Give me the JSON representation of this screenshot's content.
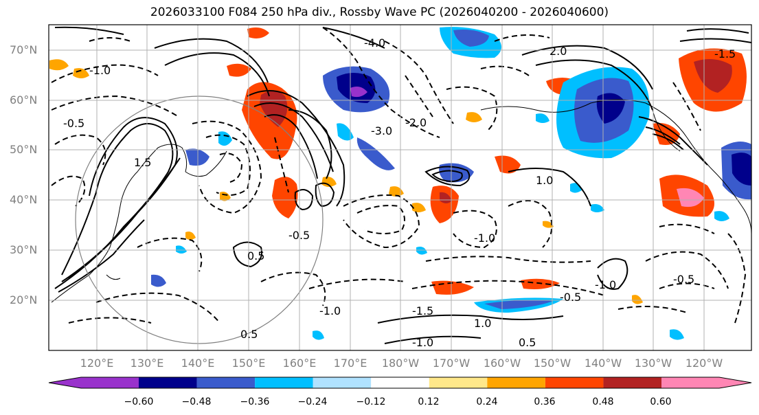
{
  "title": "2026033100 F084 250 hPa div., Rossby Wave PC (2026040200 - 2026040600)",
  "lat_labels": [
    "70°N",
    "60°N",
    "50°N",
    "40°N",
    "30°N",
    "20°N"
  ],
  "lon_labels": [
    "120°E",
    "130°E",
    "140°E",
    "150°E",
    "160°E",
    "170°E",
    "180°W",
    "170°W",
    "160°W",
    "150°W",
    "140°W",
    "130°W",
    "120°W"
  ],
  "colorbar": {
    "colors": [
      "#9932cc",
      "#00008b",
      "#3a5bcc",
      "#00bfff",
      "#b0e2ff",
      "#ffffff",
      "#ffe88a",
      "#ffa500",
      "#ff4500",
      "#b22222",
      "#ff86b4"
    ],
    "labels": [
      "−0.60",
      "−0.48",
      "−0.36",
      "−0.24",
      "−0.12",
      "0.12",
      "0.24",
      "0.36",
      "0.48",
      "0.60"
    ]
  },
  "contour_labels": [
    "-1.0",
    "-0.5",
    "-4.0",
    "2.0",
    "-1.5",
    "1.5",
    "-2.0",
    "-3.0",
    "0.5",
    "-1.0",
    "1.0",
    "-0.5",
    "-1.0",
    "-0.5",
    "0.5",
    "1.0",
    "-1.5",
    "-1.0",
    "0.5",
    "-0.5",
    "-1.0"
  ]
}
